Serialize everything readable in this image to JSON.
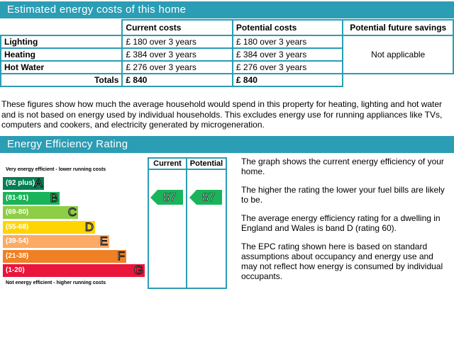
{
  "costs_section": {
    "title": "Estimated energy costs of this home",
    "columns": [
      "Current costs",
      "Potential costs",
      "Potential future savings"
    ],
    "rows": [
      {
        "label": "Lighting",
        "current": "£ 180 over 3 years",
        "potential": "£ 180 over 3 years"
      },
      {
        "label": "Heating",
        "current": "£ 384 over 3 years",
        "potential": "£ 384 over 3 years"
      },
      {
        "label": "Hot Water",
        "current": "£ 276 over 3 years",
        "potential": "£ 276 over 3 years"
      }
    ],
    "savings": "Not applicable",
    "totals_label": "Totals",
    "total_current": "£ 840",
    "total_potential": "£ 840",
    "explanation": "These figures show how much the average household would spend in this property for heating, lighting and hot water and is not based on energy used by individual households. This excludes energy use for running appliances like TVs, computers and cookers, and electricity generated by microgeneration."
  },
  "efficiency_section": {
    "title": "Energy Efficiency Rating",
    "top_label": "Very energy efficient - lower running costs",
    "bottom_label": "Not energy efficient - higher running costs",
    "col_current": "Current",
    "col_potential": "Potential",
    "bands": [
      {
        "range": "(92 plus)",
        "letter": "A",
        "color": "#008054",
        "fraction": 0.29
      },
      {
        "range": "(81-91)",
        "letter": "B",
        "color": "#19b459",
        "fraction": 0.4
      },
      {
        "range": "(69-80)",
        "letter": "C",
        "color": "#8dce46",
        "fraction": 0.53
      },
      {
        "range": "(55-68)",
        "letter": "D",
        "color": "#ffd500",
        "fraction": 0.65
      },
      {
        "range": "(39-54)",
        "letter": "E",
        "color": "#fcaa65",
        "fraction": 0.75
      },
      {
        "range": "(21-38)",
        "letter": "F",
        "color": "#ef8023",
        "fraction": 0.87
      },
      {
        "range": "(1-20)",
        "letter": "G",
        "color": "#e9153b",
        "fraction": 1.0
      }
    ],
    "current_rating": "87",
    "potential_rating": "87",
    "rating_color": "#19b459",
    "paragraphs": [
      "The graph shows the current energy efficiency of your home.",
      "The higher the rating the lower your fuel bills are likely to be.",
      "The average energy efficiency rating for a dwelling in England and Wales is band D (rating 60).",
      "The EPC rating shown here is based on standard assumptions about occupancy and energy use and may not reflect how energy is consumed by individual occupants."
    ]
  }
}
